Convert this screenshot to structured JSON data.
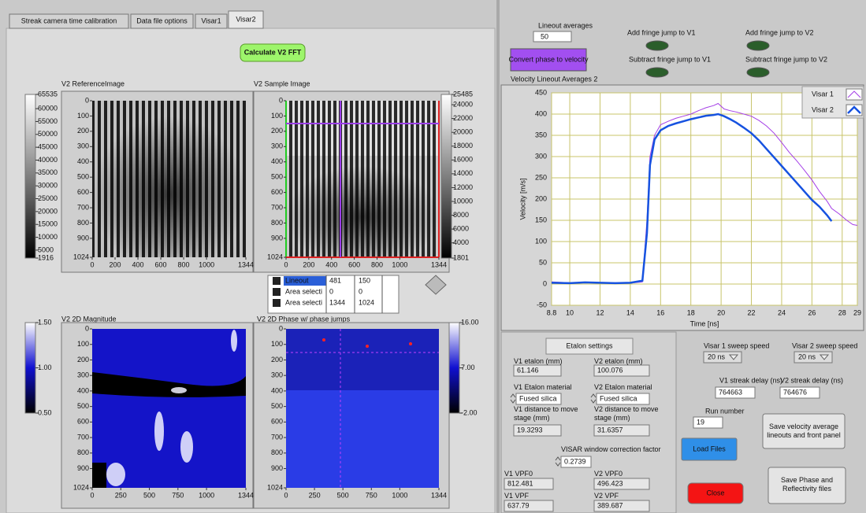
{
  "tabs": [
    "Streak camera time calibration",
    "Data file options",
    "Visar1",
    "Visar2"
  ],
  "fft_button": "Calculate V2 FFT",
  "images": [
    {
      "title": "V2 ReferenceImage",
      "yticks": [
        "0",
        "100",
        "200",
        "300",
        "400",
        "500",
        "600",
        "700",
        "800",
        "900",
        "1024"
      ],
      "xticks": [
        "0",
        "200",
        "400",
        "600",
        "800",
        "1000",
        "1344"
      ],
      "colorbar": [
        "65535",
        "60000",
        "55000",
        "50000",
        "45000",
        "40000",
        "35000",
        "30000",
        "25000",
        "20000",
        "15000",
        "10000",
        "5000",
        "1916"
      ]
    },
    {
      "title": "V2 Sample Image",
      "yticks": [
        "0",
        "100",
        "200",
        "300",
        "400",
        "500",
        "600",
        "700",
        "800",
        "900",
        "1024"
      ],
      "xticks": [
        "0",
        "200",
        "400",
        "600",
        "800",
        "1000",
        "1344"
      ],
      "colorbar": [
        "25485",
        "24000",
        "22000",
        "20000",
        "18000",
        "16000",
        "14000",
        "12000",
        "10000",
        "8000",
        "6000",
        "4000",
        "1801"
      ]
    },
    {
      "title": "V2 2D Magnitude",
      "yticks": [
        "0",
        "100",
        "200",
        "300",
        "400",
        "500",
        "600",
        "700",
        "800",
        "900",
        "1024"
      ],
      "xticks": [
        "0",
        "250",
        "500",
        "750",
        "1000",
        "1344"
      ],
      "colorbar": [
        "1.50",
        "1.00",
        "0.50"
      ]
    },
    {
      "title": "V2 2D Phase w/ phase jumps",
      "yticks": [
        "0",
        "100",
        "200",
        "300",
        "400",
        "500",
        "600",
        "700",
        "800",
        "900",
        "1024"
      ],
      "xticks": [
        "0",
        "250",
        "500",
        "750",
        "1000",
        "1344"
      ],
      "colorbar": [
        "16.00",
        "7.00",
        "-2.00"
      ]
    }
  ],
  "cursors": [
    [
      "Lineout",
      "481",
      "150"
    ],
    [
      "Area selecti",
      "0",
      "0"
    ],
    [
      "Area selecti",
      "1344",
      "1024"
    ]
  ],
  "lineout_averages": {
    "label": "Lineout averages",
    "value": "50"
  },
  "convert_button": "Convert phase to velocity",
  "fringe": [
    "Add fringe jump to V1",
    "Add fringe jump to V2",
    "Subtract fringe jump to V1",
    "Subtract fringe jump to V2"
  ],
  "chart_data": {
    "type": "line",
    "title": "Velocity Lineout Averages 2",
    "xlabel": "Time [ns]",
    "ylabel": "Velocity [m/s]",
    "x": [
      8.8,
      10,
      11,
      12,
      13,
      14,
      14.8,
      15.1,
      15.3,
      15.6,
      16,
      16.5,
      17,
      17.5,
      18,
      18.5,
      19,
      19.5,
      19.8,
      20.2,
      20.6,
      21,
      21.5,
      22,
      22.5,
      23,
      23.5,
      24,
      24.5,
      25,
      25.5,
      26,
      26.5,
      27,
      27.3,
      27.8,
      28.3,
      28.7,
      29
    ],
    "series": [
      {
        "name": "Visar 1",
        "color": "#a43ee6",
        "values": [
          5,
          3,
          4,
          2,
          3,
          2,
          5,
          150,
          300,
          350,
          375,
          383,
          390,
          395,
          400,
          408,
          415,
          420,
          425,
          412,
          408,
          405,
          400,
          395,
          385,
          372,
          355,
          333,
          310,
          290,
          268,
          245,
          218,
          195,
          178,
          165,
          150,
          140,
          138
        ]
      },
      {
        "name": "Visar 2",
        "color": "#1652e0",
        "values": [
          3,
          2,
          4,
          3,
          2,
          3,
          8,
          120,
          280,
          340,
          362,
          372,
          378,
          383,
          388,
          392,
          396,
          398,
          400,
          395,
          388,
          380,
          368,
          355,
          338,
          318,
          298,
          278,
          258,
          238,
          218,
          198,
          182,
          162,
          148,
          null,
          null,
          null,
          null
        ]
      }
    ],
    "xlim": [
      8.8,
      29
    ],
    "ylim": [
      -50,
      450
    ],
    "xticks": [
      8.8,
      10,
      12,
      14,
      16,
      18,
      20,
      22,
      24,
      26,
      28,
      29
    ],
    "yticks": [
      -50,
      0,
      50,
      100,
      150,
      200,
      250,
      300,
      350,
      400,
      450
    ],
    "grid": true,
    "legend": "upper right"
  },
  "etalon": {
    "title": "Etalon settings",
    "fields": [
      {
        "label": "V1 etalon (mm)",
        "value": "61.146"
      },
      {
        "label": "V2 etalon (mm)",
        "value": "100.076"
      },
      {
        "label": "V1 Etalon material",
        "value": "Fused silica"
      },
      {
        "label": "V2 Etalon material",
        "value": "Fused silica"
      },
      {
        "label": "V1 distance to move stage (mm)",
        "value": "19.3293"
      },
      {
        "label": "V2 distance to move stage (mm)",
        "value": "31.6357"
      },
      {
        "label": "VISAR window correction factor",
        "value": "0.2739"
      },
      {
        "label": "V1 VPF0",
        "value": "812.481"
      },
      {
        "label": "V2 VPF0",
        "value": "496.423"
      },
      {
        "label": "V1 VPF",
        "value": "637.79"
      },
      {
        "label": "V2 VPF",
        "value": "389.687"
      }
    ]
  },
  "sweep": [
    {
      "label": "Visar 1 sweep speed",
      "value": "20 ns"
    },
    {
      "label": "Visar 2 sweep speed",
      "value": "20 ns"
    }
  ],
  "streak_delay": [
    {
      "label": "V1 streak delay (ns)",
      "value": "764663"
    },
    {
      "label": "V2 streak delay (ns)",
      "value": "764676"
    }
  ],
  "run_number": {
    "label": "Run number",
    "value": "19"
  },
  "buttons": {
    "load": "Load Files",
    "save_velocity": "Save velocity average lineouts and front panel",
    "save_phase": "Save Phase and Reflectivity files",
    "close": "Close"
  }
}
